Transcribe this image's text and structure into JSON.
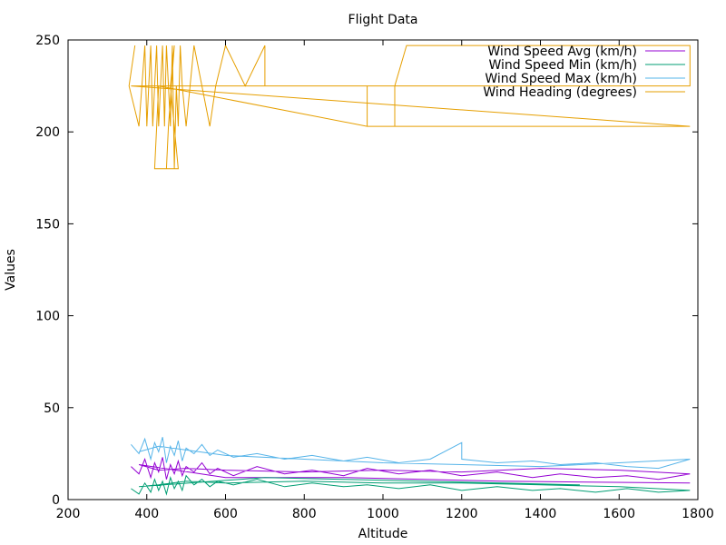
{
  "chart_data": {
    "type": "line",
    "title": "Flight Data",
    "xlabel": "Altitude",
    "ylabel": "Values",
    "xlim": [
      200,
      1800
    ],
    "ylim": [
      0,
      250
    ],
    "xticks": [
      200,
      400,
      600,
      800,
      1000,
      1200,
      1400,
      1600,
      1800
    ],
    "yticks": [
      0,
      50,
      100,
      150,
      200,
      250
    ],
    "grid": false,
    "legend_position": "top-right",
    "series": [
      {
        "name": "Wind Speed Avg (km/h)",
        "color": "#9400d3",
        "points": [
          [
            360,
            18
          ],
          [
            380,
            14
          ],
          [
            395,
            22
          ],
          [
            410,
            12
          ],
          [
            420,
            20
          ],
          [
            430,
            15
          ],
          [
            440,
            23
          ],
          [
            450,
            11
          ],
          [
            460,
            19
          ],
          [
            470,
            14
          ],
          [
            480,
            21
          ],
          [
            490,
            13
          ],
          [
            500,
            18
          ],
          [
            520,
            15
          ],
          [
            540,
            20
          ],
          [
            560,
            14
          ],
          [
            580,
            17
          ],
          [
            620,
            13
          ],
          [
            680,
            18
          ],
          [
            750,
            14
          ],
          [
            820,
            16
          ],
          [
            900,
            13
          ],
          [
            960,
            17
          ],
          [
            1040,
            14
          ],
          [
            1120,
            16
          ],
          [
            1200,
            13
          ],
          [
            1290,
            15
          ],
          [
            1380,
            12
          ],
          [
            1450,
            14
          ],
          [
            1540,
            12
          ],
          [
            1620,
            13
          ],
          [
            1700,
            11
          ],
          [
            1780,
            14
          ],
          [
            1600,
            16
          ],
          [
            1400,
            17
          ],
          [
            1200,
            15
          ],
          [
            1000,
            16
          ],
          [
            800,
            15
          ],
          [
            600,
            16
          ],
          [
            500,
            17
          ],
          [
            430,
            16
          ],
          [
            380,
            19
          ],
          [
            600,
            12
          ],
          [
            900,
            12
          ],
          [
            1300,
            10
          ],
          [
            1780,
            9
          ]
        ]
      },
      {
        "name": "Wind Speed Min (km/h)",
        "color": "#009e73",
        "points": [
          [
            360,
            6
          ],
          [
            380,
            3
          ],
          [
            395,
            9
          ],
          [
            410,
            4
          ],
          [
            420,
            11
          ],
          [
            430,
            5
          ],
          [
            440,
            10
          ],
          [
            450,
            3
          ],
          [
            460,
            12
          ],
          [
            470,
            6
          ],
          [
            480,
            10
          ],
          [
            490,
            5
          ],
          [
            500,
            13
          ],
          [
            520,
            8
          ],
          [
            540,
            11
          ],
          [
            560,
            7
          ],
          [
            580,
            10
          ],
          [
            620,
            8
          ],
          [
            680,
            11
          ],
          [
            750,
            7
          ],
          [
            820,
            9
          ],
          [
            900,
            7
          ],
          [
            960,
            8
          ],
          [
            1040,
            6
          ],
          [
            1120,
            8
          ],
          [
            1200,
            5
          ],
          [
            1290,
            7
          ],
          [
            1380,
            5
          ],
          [
            1450,
            6
          ],
          [
            1540,
            4
          ],
          [
            1620,
            6
          ],
          [
            1700,
            4
          ],
          [
            1780,
            5
          ],
          [
            1600,
            7
          ],
          [
            1400,
            8
          ],
          [
            1200,
            9
          ],
          [
            1000,
            9
          ],
          [
            800,
            10
          ],
          [
            600,
            9
          ],
          [
            500,
            10
          ],
          [
            430,
            8
          ],
          [
            380,
            7
          ],
          [
            700,
            12
          ],
          [
            900,
            11
          ],
          [
            1100,
            10
          ],
          [
            1300,
            9
          ],
          [
            1500,
            8
          ]
        ]
      },
      {
        "name": "Wind Speed Max (km/h)",
        "color": "#56b4e9",
        "points": [
          [
            360,
            30
          ],
          [
            380,
            25
          ],
          [
            395,
            33
          ],
          [
            410,
            22
          ],
          [
            420,
            31
          ],
          [
            430,
            26
          ],
          [
            440,
            34
          ],
          [
            450,
            20
          ],
          [
            460,
            29
          ],
          [
            470,
            24
          ],
          [
            480,
            32
          ],
          [
            490,
            21
          ],
          [
            500,
            28
          ],
          [
            520,
            25
          ],
          [
            540,
            30
          ],
          [
            560,
            24
          ],
          [
            580,
            27
          ],
          [
            620,
            23
          ],
          [
            680,
            25
          ],
          [
            750,
            22
          ],
          [
            820,
            24
          ],
          [
            900,
            21
          ],
          [
            960,
            23
          ],
          [
            1040,
            20
          ],
          [
            1120,
            22
          ],
          [
            1200,
            31
          ],
          [
            1200,
            22
          ],
          [
            1290,
            20
          ],
          [
            1380,
            21
          ],
          [
            1450,
            19
          ],
          [
            1540,
            20
          ],
          [
            1620,
            18
          ],
          [
            1700,
            17
          ],
          [
            1780,
            22
          ],
          [
            1600,
            20
          ],
          [
            1400,
            18
          ],
          [
            1200,
            19
          ],
          [
            1000,
            20
          ],
          [
            800,
            22
          ],
          [
            600,
            24
          ],
          [
            500,
            27
          ],
          [
            430,
            29
          ],
          [
            380,
            26
          ]
        ]
      },
      {
        "name": "Wind Heading (degrees)",
        "color": "#e69f00",
        "points": [
          [
            370,
            247
          ],
          [
            355,
            225
          ],
          [
            380,
            203
          ],
          [
            395,
            247
          ],
          [
            400,
            203
          ],
          [
            405,
            225
          ],
          [
            410,
            247
          ],
          [
            415,
            203
          ],
          [
            420,
            225
          ],
          [
            425,
            247
          ],
          [
            430,
            203
          ],
          [
            435,
            225
          ],
          [
            440,
            247
          ],
          [
            445,
            203
          ],
          [
            450,
            247
          ],
          [
            455,
            225
          ],
          [
            460,
            203
          ],
          [
            465,
            247
          ],
          [
            470,
            180
          ],
          [
            475,
            225
          ],
          [
            480,
            203
          ],
          [
            485,
            247
          ],
          [
            490,
            225
          ],
          [
            500,
            203
          ],
          [
            520,
            247
          ],
          [
            540,
            225
          ],
          [
            560,
            203
          ],
          [
            575,
            225
          ],
          [
            600,
            247
          ],
          [
            650,
            225
          ],
          [
            700,
            247
          ],
          [
            700,
            225
          ],
          [
            960,
            225
          ],
          [
            960,
            203
          ],
          [
            1030,
            203
          ],
          [
            1030,
            225
          ],
          [
            1060,
            247
          ],
          [
            1160,
            247
          ],
          [
            1780,
            247
          ],
          [
            1780,
            225
          ],
          [
            360,
            225
          ],
          [
            1780,
            203
          ],
          [
            960,
            203
          ],
          [
            430,
            225
          ],
          [
            420,
            180
          ],
          [
            480,
            180
          ],
          [
            460,
            225
          ],
          [
            470,
            247
          ],
          [
            455,
            203
          ],
          [
            450,
            180
          ]
        ]
      }
    ]
  }
}
